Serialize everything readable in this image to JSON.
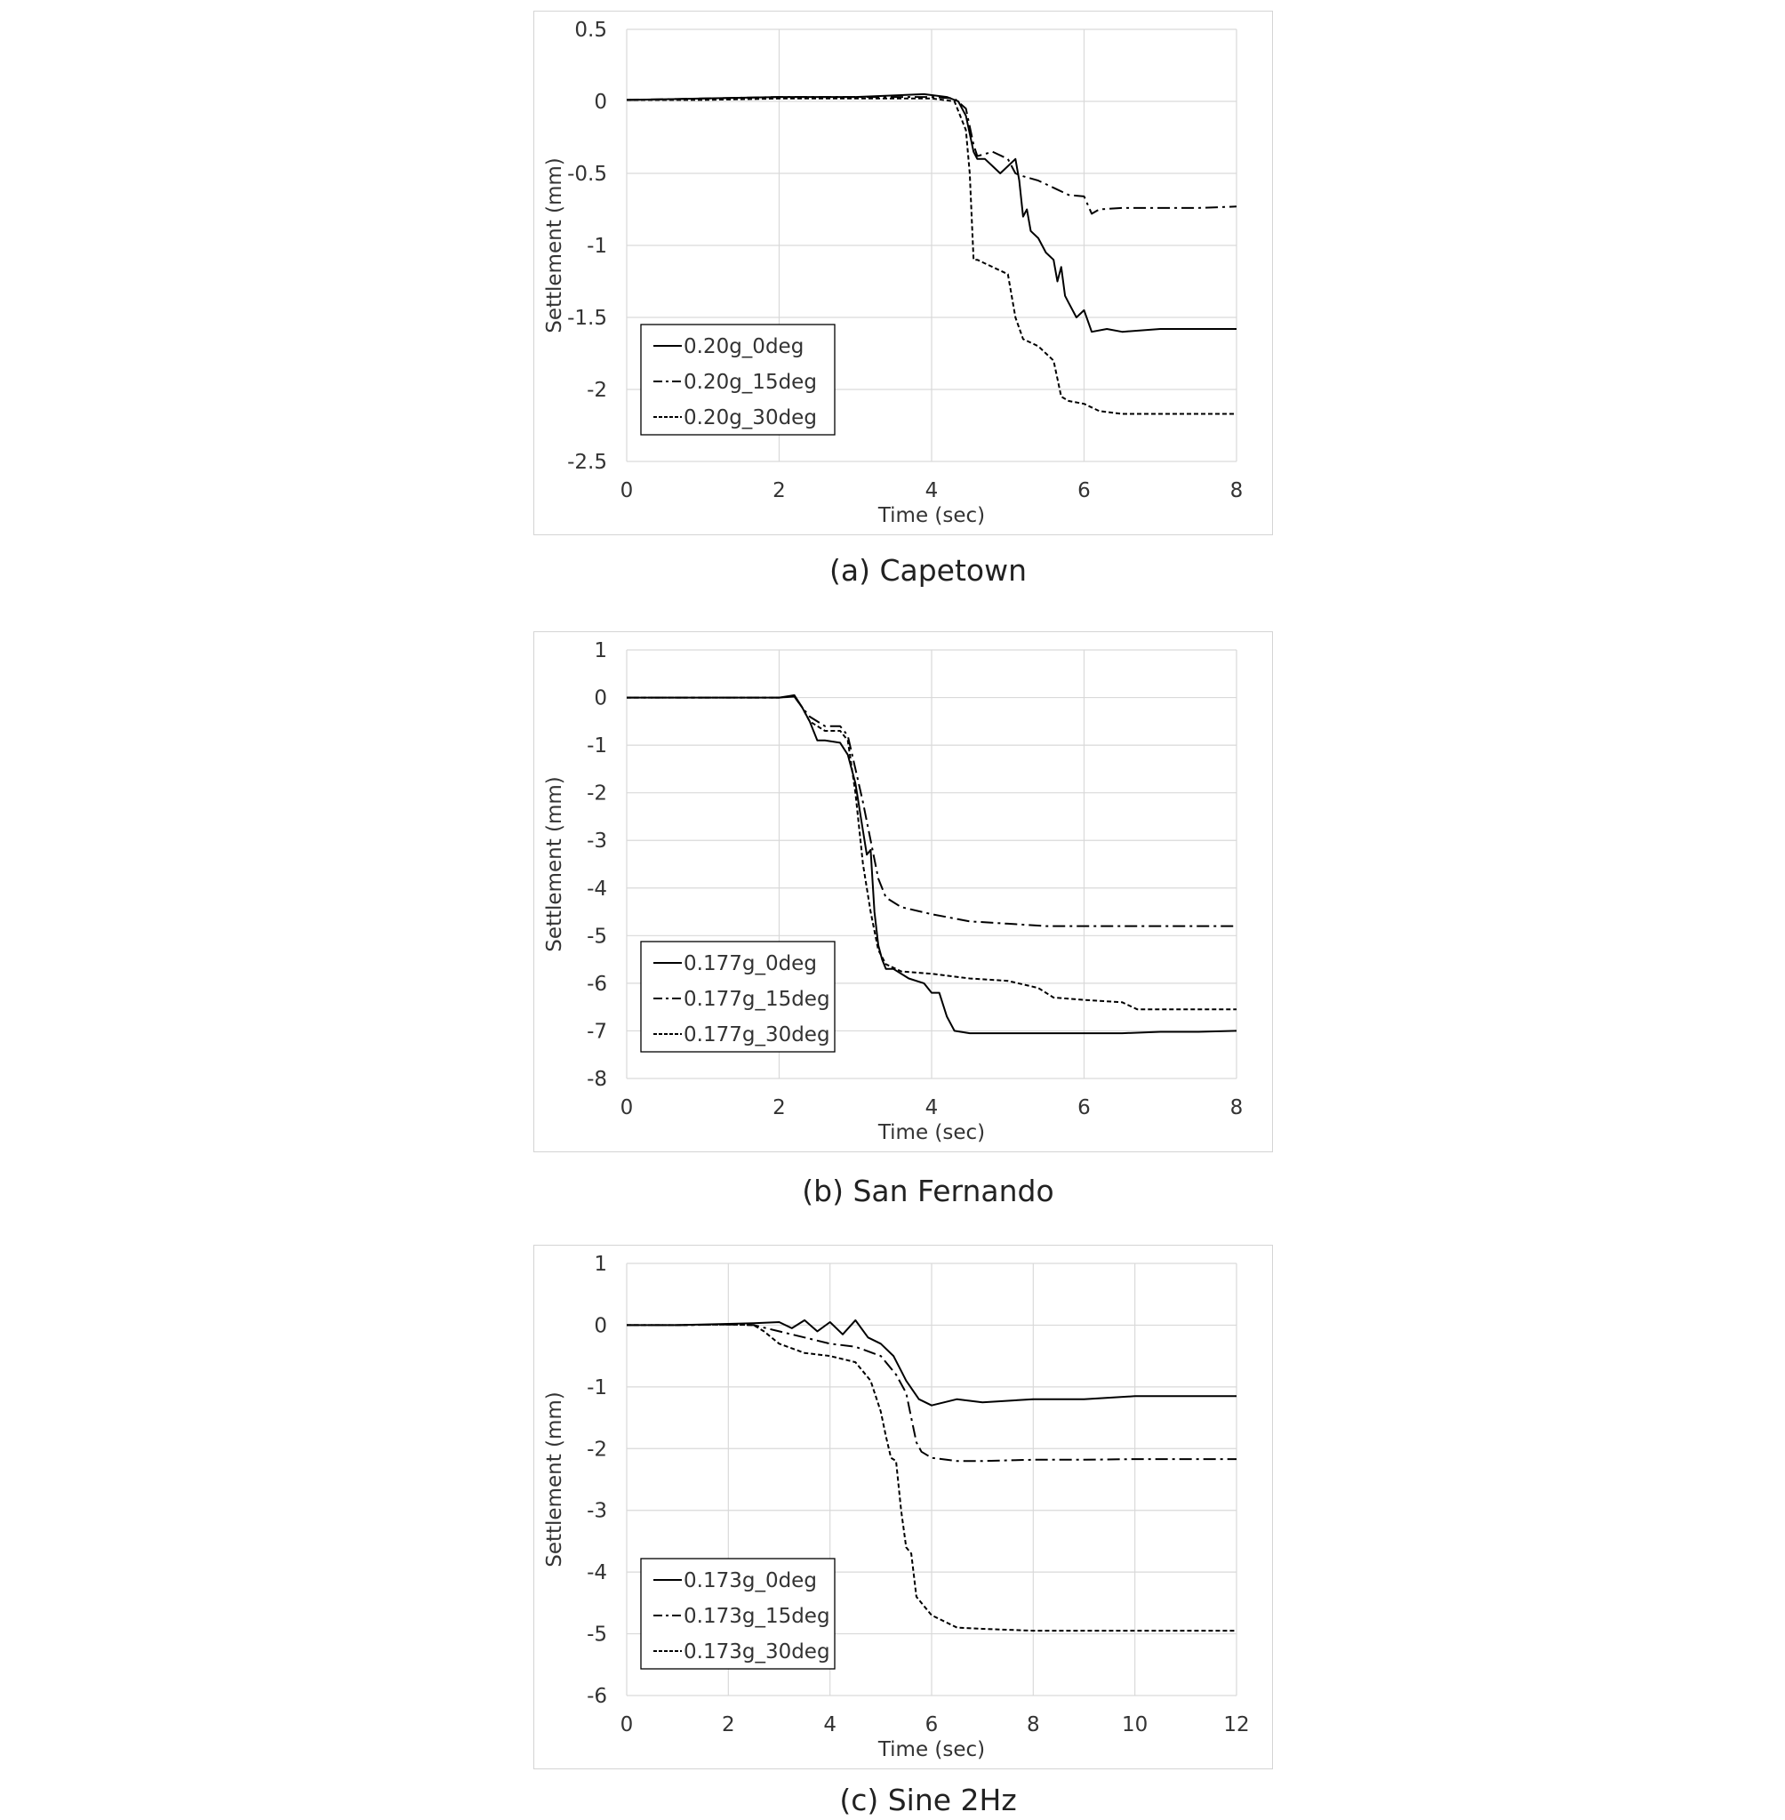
{
  "chart_data": [
    {
      "type": "line",
      "caption": "(a)  Capetown",
      "xlabel": "Time (sec)",
      "ylabel": "Settlement (mm)",
      "xlim": [
        0,
        8
      ],
      "ylim": [
        -2.5,
        0.5
      ],
      "xticks": [
        0,
        2,
        4,
        6,
        8
      ],
      "yticks": [
        0.5,
        0,
        -0.5,
        -1,
        -1.5,
        -2,
        -2.5
      ],
      "ytick_labels": [
        "0.5",
        "0",
        "-0.5",
        "-1",
        "-1.5",
        "-2",
        "-2.5"
      ],
      "xtick_labels": [
        "0",
        "2",
        "4",
        "6",
        "8"
      ],
      "grid": true,
      "legend_position": "bottom-left",
      "series": [
        {
          "name": "0.20g_0deg",
          "style": "solid",
          "x": [
            0,
            1,
            2,
            3,
            3.9,
            4.2,
            4.35,
            4.45,
            4.55,
            4.6,
            4.7,
            4.8,
            4.9,
            5.0,
            5.1,
            5.15,
            5.2,
            5.25,
            5.3,
            5.4,
            5.5,
            5.6,
            5.65,
            5.7,
            5.75,
            5.8,
            5.9,
            6.0,
            6.1,
            6.3,
            6.5,
            7.0,
            7.5,
            8.0
          ],
          "y": [
            0.01,
            0.02,
            0.03,
            0.03,
            0.05,
            0.03,
            0.0,
            -0.1,
            -0.35,
            -0.4,
            -0.4,
            -0.45,
            -0.5,
            -0.45,
            -0.4,
            -0.55,
            -0.8,
            -0.75,
            -0.9,
            -0.95,
            -1.05,
            -1.1,
            -1.25,
            -1.15,
            -1.35,
            -1.4,
            -1.5,
            -1.45,
            -1.6,
            -1.58,
            -1.6,
            -1.58,
            -1.58,
            -1.58
          ]
        },
        {
          "name": "0.20g_15deg",
          "style": "dashdot",
          "x": [
            0,
            1,
            2,
            3,
            4.0,
            4.3,
            4.45,
            4.55,
            4.6,
            4.8,
            5.0,
            5.1,
            5.2,
            5.4,
            5.6,
            5.8,
            6.0,
            6.1,
            6.2,
            6.5,
            7.0,
            7.5,
            8.0
          ],
          "y": [
            0.01,
            0.02,
            0.03,
            0.03,
            0.03,
            0.02,
            -0.05,
            -0.3,
            -0.38,
            -0.35,
            -0.4,
            -0.5,
            -0.52,
            -0.55,
            -0.6,
            -0.65,
            -0.66,
            -0.78,
            -0.75,
            -0.74,
            -0.74,
            -0.74,
            -0.73
          ]
        },
        {
          "name": "0.20g_30deg",
          "style": "dashed",
          "x": [
            0,
            1,
            2,
            3,
            4.0,
            4.3,
            4.45,
            4.5,
            4.55,
            4.6,
            4.8,
            5.0,
            5.1,
            5.2,
            5.4,
            5.6,
            5.7,
            5.8,
            6.0,
            6.2,
            6.5,
            7.0,
            7.5,
            8.0
          ],
          "y": [
            0.01,
            0.01,
            0.02,
            0.02,
            0.02,
            0.0,
            -0.2,
            -0.5,
            -1.1,
            -1.1,
            -1.15,
            -1.2,
            -1.5,
            -1.65,
            -1.7,
            -1.8,
            -2.05,
            -2.08,
            -2.1,
            -2.15,
            -2.17,
            -2.17,
            -2.17,
            -2.17
          ]
        }
      ]
    },
    {
      "type": "line",
      "caption": "(b)  San  Fernando",
      "xlabel": "Time (sec)",
      "ylabel": "Settlement (mm)",
      "xlim": [
        0,
        8
      ],
      "ylim": [
        -8,
        1
      ],
      "xticks": [
        0,
        2,
        4,
        6,
        8
      ],
      "yticks": [
        1,
        0,
        -1,
        -2,
        -3,
        -4,
        -5,
        -6,
        -7,
        -8
      ],
      "ytick_labels": [
        "1",
        "0",
        "-1",
        "-2",
        "-3",
        "-4",
        "-5",
        "-6",
        "-7",
        "-8"
      ],
      "xtick_labels": [
        "0",
        "2",
        "4",
        "6",
        "8"
      ],
      "grid": true,
      "legend_position": "bottom-left",
      "series": [
        {
          "name": "0.177g_0deg",
          "style": "solid",
          "x": [
            0,
            1,
            2,
            2.2,
            2.3,
            2.4,
            2.5,
            2.6,
            2.8,
            2.9,
            3.0,
            3.1,
            3.15,
            3.2,
            3.25,
            3.3,
            3.35,
            3.4,
            3.5,
            3.7,
            3.9,
            4.0,
            4.1,
            4.2,
            4.3,
            4.5,
            5.0,
            5.5,
            6.0,
            6.5,
            7.0,
            7.5,
            8.0
          ],
          "y": [
            0,
            0,
            0,
            0.05,
            -0.2,
            -0.5,
            -0.9,
            -0.9,
            -0.95,
            -1.2,
            -1.8,
            -2.8,
            -3.3,
            -3.2,
            -4.5,
            -5.2,
            -5.5,
            -5.7,
            -5.7,
            -5.9,
            -6.0,
            -6.2,
            -6.2,
            -6.7,
            -7.0,
            -7.05,
            -7.05,
            -7.05,
            -7.05,
            -7.05,
            -7.02,
            -7.02,
            -7.0
          ]
        },
        {
          "name": "0.177g_15deg",
          "style": "dashdot",
          "x": [
            0,
            1,
            2,
            2.2,
            2.3,
            2.4,
            2.6,
            2.8,
            2.9,
            3.0,
            3.1,
            3.2,
            3.3,
            3.4,
            3.6,
            4.0,
            4.5,
            5.0,
            5.5,
            6.0,
            6.5,
            7.0,
            8.0
          ],
          "y": [
            0,
            0,
            0,
            0.02,
            -0.2,
            -0.4,
            -0.6,
            -0.6,
            -0.8,
            -1.5,
            -2.2,
            -3.0,
            -3.8,
            -4.2,
            -4.4,
            -4.55,
            -4.7,
            -4.75,
            -4.8,
            -4.8,
            -4.8,
            -4.8,
            -4.8
          ]
        },
        {
          "name": "0.177g_30deg",
          "style": "dashed",
          "x": [
            0,
            1,
            2,
            2.2,
            2.3,
            2.4,
            2.6,
            2.8,
            2.9,
            3.0,
            3.1,
            3.2,
            3.3,
            3.4,
            3.6,
            4.0,
            4.5,
            5.0,
            5.4,
            5.6,
            6.0,
            6.5,
            6.7,
            7.0,
            7.5,
            8.0
          ],
          "y": [
            0,
            0,
            0,
            0.02,
            -0.2,
            -0.5,
            -0.7,
            -0.7,
            -0.9,
            -2.0,
            -3.5,
            -4.5,
            -5.3,
            -5.6,
            -5.75,
            -5.8,
            -5.9,
            -5.95,
            -6.1,
            -6.3,
            -6.35,
            -6.4,
            -6.55,
            -6.55,
            -6.55,
            -6.55
          ]
        }
      ]
    },
    {
      "type": "line",
      "caption": "(c)  Sine  2Hz",
      "xlabel": "Time (sec)",
      "ylabel": "Settlement (mm)",
      "xlim": [
        0,
        12
      ],
      "ylim": [
        -6,
        1
      ],
      "xticks": [
        0,
        2,
        4,
        6,
        8,
        10,
        12
      ],
      "yticks": [
        1,
        0,
        -1,
        -2,
        -3,
        -4,
        -5,
        -6
      ],
      "ytick_labels": [
        "1",
        "0",
        "-1",
        "-2",
        "-3",
        "-4",
        "-5",
        "-6"
      ],
      "xtick_labels": [
        "0",
        "2",
        "4",
        "6",
        "8",
        "10",
        "12"
      ],
      "grid": true,
      "legend_position": "bottom-left",
      "series": [
        {
          "name": "0.173g_0deg",
          "style": "solid",
          "x": [
            0,
            1,
            2,
            2.5,
            3.0,
            3.25,
            3.5,
            3.75,
            4.0,
            4.25,
            4.5,
            4.75,
            5.0,
            5.25,
            5.5,
            5.75,
            6.0,
            6.5,
            7.0,
            8.0,
            9.0,
            10.0,
            11.0,
            12.0
          ],
          "y": [
            0,
            0,
            0.02,
            0.03,
            0.05,
            -0.05,
            0.08,
            -0.1,
            0.05,
            -0.15,
            0.08,
            -0.2,
            -0.3,
            -0.5,
            -0.9,
            -1.2,
            -1.3,
            -1.2,
            -1.25,
            -1.2,
            -1.2,
            -1.15,
            -1.15,
            -1.15
          ]
        },
        {
          "name": "0.173g_15deg",
          "style": "dashdot",
          "x": [
            0,
            1,
            2,
            2.5,
            3.0,
            3.5,
            4.0,
            4.5,
            5.0,
            5.3,
            5.5,
            5.6,
            5.7,
            5.8,
            6.0,
            6.5,
            7.0,
            8.0,
            9.0,
            10.0,
            11.0,
            12.0
          ],
          "y": [
            0,
            0,
            0.01,
            0.0,
            -0.1,
            -0.2,
            -0.3,
            -0.35,
            -0.5,
            -0.8,
            -1.1,
            -1.5,
            -1.9,
            -2.05,
            -2.15,
            -2.2,
            -2.2,
            -2.18,
            -2.18,
            -2.17,
            -2.17,
            -2.17
          ]
        },
        {
          "name": "0.173g_30deg",
          "style": "dashed",
          "x": [
            0,
            1,
            2,
            2.5,
            2.7,
            3.0,
            3.5,
            4.0,
            4.5,
            4.8,
            5.0,
            5.1,
            5.2,
            5.3,
            5.4,
            5.5,
            5.6,
            5.7,
            5.8,
            6.0,
            6.5,
            7.0,
            8.0,
            9.0,
            10.0,
            11.0,
            12.0
          ],
          "y": [
            0,
            0,
            0.01,
            0.0,
            -0.1,
            -0.3,
            -0.45,
            -0.5,
            -0.6,
            -0.9,
            -1.4,
            -1.8,
            -2.15,
            -2.2,
            -3.0,
            -3.6,
            -3.7,
            -4.4,
            -4.5,
            -4.7,
            -4.9,
            -4.92,
            -4.95,
            -4.95,
            -4.95,
            -4.95,
            -4.95
          ]
        }
      ]
    }
  ]
}
